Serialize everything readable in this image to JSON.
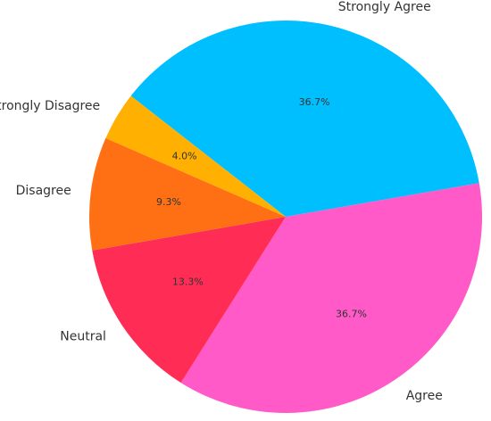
{
  "chart_data": {
    "type": "pie",
    "categories": [
      "Strongly Agree",
      "Agree",
      "Neutral",
      "Disagree",
      "Strongly Disagree"
    ],
    "values": [
      36.7,
      36.7,
      13.3,
      9.3,
      4.0
    ],
    "value_labels": [
      "36.7%",
      "36.7%",
      "13.3%",
      "9.3%",
      "4.0%"
    ],
    "colors": [
      "#00bfff",
      "#ff5ac8",
      "#ff2d55",
      "#ff7014",
      "#ffb000"
    ]
  }
}
